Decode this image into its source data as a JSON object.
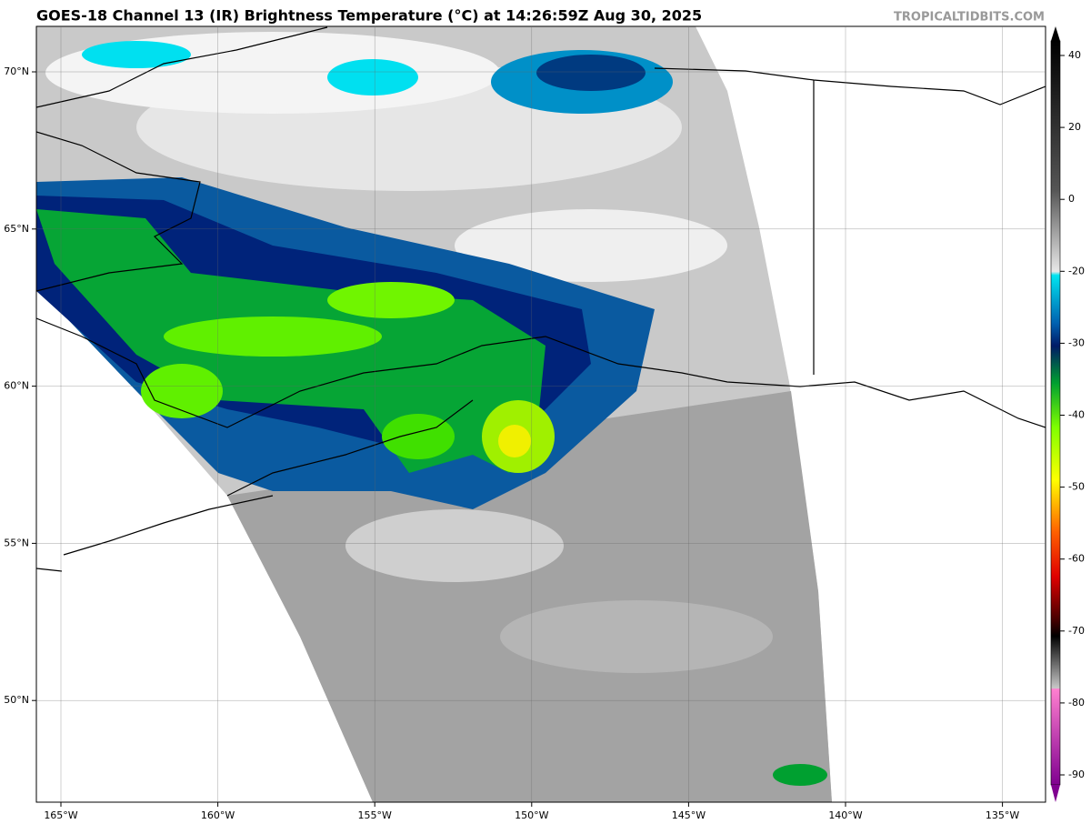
{
  "header": {
    "title": "GOES-18 Channel 13 (IR) Brightness Temperature (°C) at 14:26:59Z Aug 30, 2025",
    "credit": "TROPICALTIDBITS.COM"
  },
  "map": {
    "lon_labels": [
      "165°W",
      "160°W",
      "155°W",
      "150°W",
      "145°W",
      "140°W",
      "135°W"
    ],
    "lat_labels": [
      "70°N",
      "65°N",
      "60°N",
      "55°N",
      "50°N"
    ]
  },
  "colorbar": {
    "ticks": [
      40,
      20,
      0,
      -20,
      -30,
      -40,
      -50,
      -60,
      -70,
      -80,
      -90
    ]
  }
}
